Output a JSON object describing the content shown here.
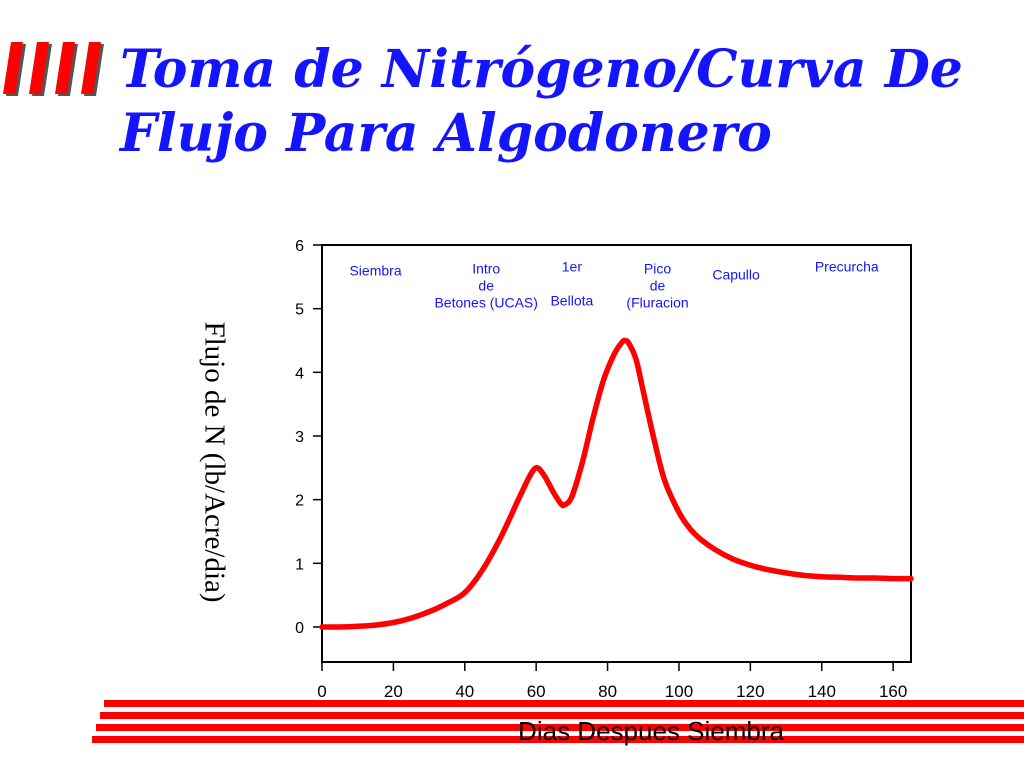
{
  "title_lines": [
    "Toma de Nitrógeno/Curva De",
    "Flujo Para Algodonero"
  ],
  "colors": {
    "title": "#1414ff",
    "curve": "#ff0000",
    "accent": "#ff0000"
  },
  "decorations": [
    "bullet-block-icon",
    "red-stripe-divider"
  ],
  "chart_data": {
    "type": "line",
    "title": "",
    "xlabel": "Dias Despues Siembra",
    "ylabel": "Flujo de N (lb/Acre/dia)",
    "xlim": [
      0,
      165
    ],
    "ylim": [
      -0.55,
      6
    ],
    "x_ticks": [
      "0",
      "20",
      "40",
      "60",
      "80",
      "100",
      "120",
      "140",
      "160"
    ],
    "y_ticks": [
      "0",
      "1",
      "2",
      "3",
      "4",
      "5",
      "6"
    ],
    "grid": false,
    "series": [
      {
        "x": [
          0,
          5,
          10,
          15,
          20,
          25,
          30,
          35,
          40,
          45,
          50,
          55,
          58,
          60,
          62,
          65,
          67,
          68,
          70,
          73,
          76,
          79,
          82,
          84,
          85,
          86,
          88,
          90,
          93,
          96,
          100,
          103,
          106,
          110,
          115,
          120,
          125,
          130,
          135,
          140,
          145,
          150,
          155,
          160,
          165
        ],
        "y": [
          0.0,
          0.0,
          0.01,
          0.03,
          0.07,
          0.14,
          0.24,
          0.37,
          0.54,
          0.9,
          1.4,
          2.0,
          2.35,
          2.5,
          2.4,
          2.1,
          1.93,
          1.92,
          2.05,
          2.6,
          3.3,
          3.9,
          4.3,
          4.47,
          4.5,
          4.45,
          4.2,
          3.7,
          2.95,
          2.3,
          1.8,
          1.55,
          1.38,
          1.22,
          1.07,
          0.97,
          0.9,
          0.85,
          0.81,
          0.79,
          0.78,
          0.77,
          0.77,
          0.76,
          0.76
        ]
      }
    ],
    "annotations": [
      {
        "lines": [
          "Siembra"
        ],
        "x": 15,
        "y": 5.52
      },
      {
        "lines": [
          "Intro",
          "de",
          "Betones (UCAS)"
        ],
        "x": 46,
        "y": 5.55
      },
      {
        "lines": [
          "1er",
          "",
          "Bellota"
        ],
        "x": 70,
        "y": 5.58
      },
      {
        "lines": [
          "Pico",
          "de",
          "(Fluracion"
        ],
        "x": 94,
        "y": 5.55
      },
      {
        "lines": [
          "Capullo"
        ],
        "x": 116,
        "y": 5.46
      },
      {
        "lines": [
          "Precurcha"
        ],
        "x": 147,
        "y": 5.58
      }
    ]
  }
}
